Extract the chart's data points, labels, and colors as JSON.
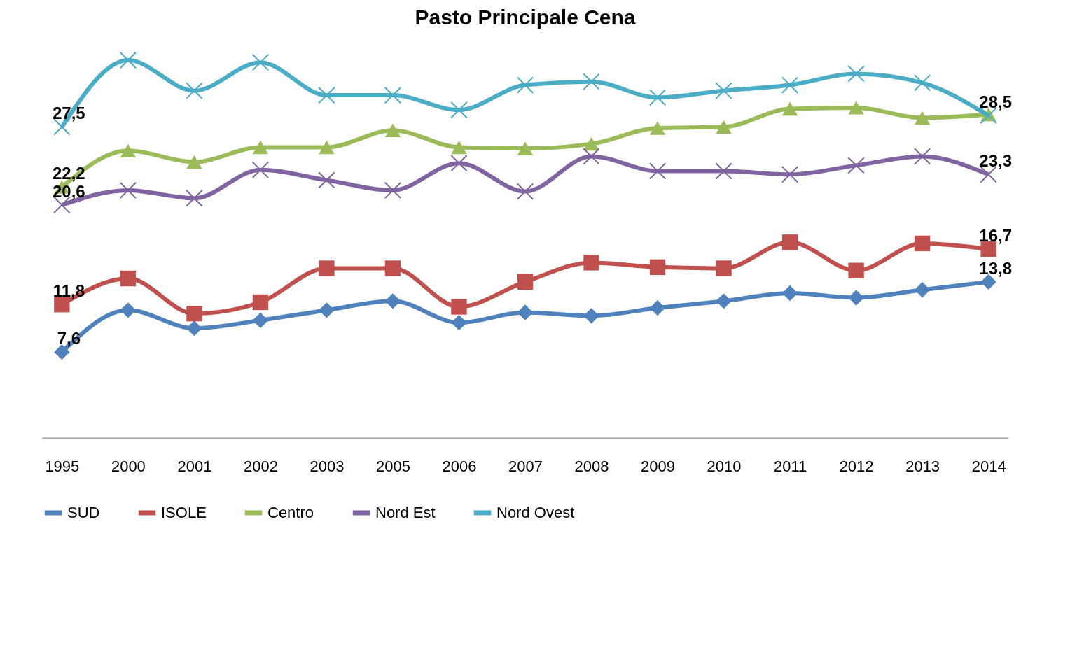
{
  "chart_data": {
    "type": "line",
    "title": "Pasto Principale Cena",
    "categories": [
      "1995",
      "2000",
      "2001",
      "2002",
      "2003",
      "2005",
      "2006",
      "2007",
      "2008",
      "2009",
      "2010",
      "2011",
      "2012",
      "2013",
      "2014"
    ],
    "grid": false,
    "legend": "bottom",
    "line_style": "solid",
    "series": [
      {
        "name": "SUD",
        "color": "#4f81bd",
        "marker": "diamond",
        "values": [
          7.6,
          11.3,
          9.7,
          10.4,
          11.3,
          12.1,
          10.2,
          11.1,
          10.8,
          11.5,
          12.1,
          12.8,
          12.4,
          13.1,
          13.8
        ],
        "value_labels": [
          "7,6",
          null,
          null,
          null,
          null,
          null,
          null,
          null,
          null,
          null,
          null,
          null,
          null,
          null,
          "13,8"
        ]
      },
      {
        "name": "ISOLE",
        "color": "#c0504d",
        "marker": "square",
        "values": [
          11.8,
          14.1,
          11.0,
          12.0,
          15.0,
          15.0,
          11.6,
          13.8,
          15.5,
          15.1,
          15.0,
          17.3,
          14.8,
          17.2,
          16.7
        ],
        "value_labels": [
          "11,8",
          null,
          null,
          null,
          null,
          null,
          null,
          null,
          null,
          null,
          null,
          null,
          null,
          null,
          "16,7"
        ]
      },
      {
        "name": "Centro",
        "color": "#9bbb59",
        "marker": "triangle",
        "values": [
          22.2,
          25.4,
          24.4,
          25.7,
          25.7,
          27.2,
          25.7,
          25.6,
          26.0,
          27.4,
          27.5,
          29.1,
          29.2,
          28.3,
          28.6
        ],
        "value_labels": [
          "22,2",
          null,
          null,
          null,
          null,
          null,
          null,
          null,
          null,
          null,
          null,
          null,
          null,
          null,
          null
        ]
      },
      {
        "name": "Nord Est",
        "color": "#8064a2",
        "marker": "cross",
        "values": [
          20.6,
          21.9,
          21.2,
          23.7,
          22.8,
          21.9,
          24.3,
          21.8,
          24.9,
          23.6,
          23.6,
          23.3,
          24.1,
          24.9,
          23.3
        ],
        "value_labels": [
          "20,6",
          null,
          null,
          null,
          null,
          null,
          null,
          null,
          null,
          null,
          null,
          null,
          null,
          null,
          "23,3"
        ]
      },
      {
        "name": "Nord Ovest",
        "color": "#4bacc6",
        "marker": "cross",
        "values": [
          27.5,
          33.4,
          30.7,
          33.2,
          30.3,
          30.3,
          29.0,
          31.2,
          31.5,
          30.1,
          30.7,
          31.2,
          32.2,
          31.4,
          28.5
        ],
        "value_labels": [
          "27,5",
          null,
          null,
          null,
          null,
          null,
          null,
          null,
          null,
          null,
          null,
          null,
          null,
          null,
          "28,5"
        ]
      }
    ]
  }
}
